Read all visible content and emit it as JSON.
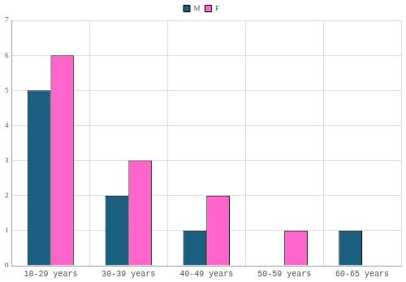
{
  "chart_data": {
    "type": "bar",
    "categories": [
      "18-29 years",
      "30-39 years",
      "40-49 years",
      "50-59 years",
      "60-65 years"
    ],
    "series": [
      {
        "name": "M",
        "color": "#1a5e80",
        "values": [
          5,
          2,
          1,
          0,
          1
        ]
      },
      {
        "name": "F",
        "color": "#ff66cc",
        "values": [
          6,
          3,
          2,
          1,
          0
        ]
      }
    ],
    "ylim": [
      0,
      7
    ],
    "yticks": [
      0,
      1,
      2,
      3,
      4,
      5,
      6,
      7
    ],
    "grid": true,
    "legend": "top"
  }
}
